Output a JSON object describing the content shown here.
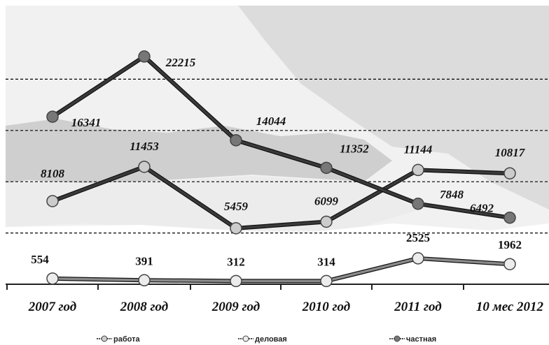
{
  "chart_data": {
    "type": "line",
    "categories": [
      "2007 год",
      "2008 год",
      "2009 год",
      "2010 год",
      "2011 год",
      "10 мес 2012"
    ],
    "ylim": [
      0,
      25000
    ],
    "grid": "horizontal dashed",
    "legend_position": "bottom",
    "series": [
      {
        "name": "работа",
        "values": [
          8108,
          11453,
          5459,
          6099,
          11144,
          10817
        ],
        "line_color": "#3a3a3a",
        "marker_color": "#cccccc",
        "label_style": "italic"
      },
      {
        "name": "деловая",
        "values": [
          554,
          391,
          312,
          314,
          2525,
          1962
        ],
        "line_color": "#8a8a8a",
        "marker_color": "#ececec",
        "label_style": "bold"
      },
      {
        "name": "частная",
        "values": [
          16341,
          22215,
          14044,
          11352,
          7848,
          6492
        ],
        "line_color": "#3a3a3a",
        "marker_color": "#777777",
        "label_style": "italic"
      }
    ]
  }
}
